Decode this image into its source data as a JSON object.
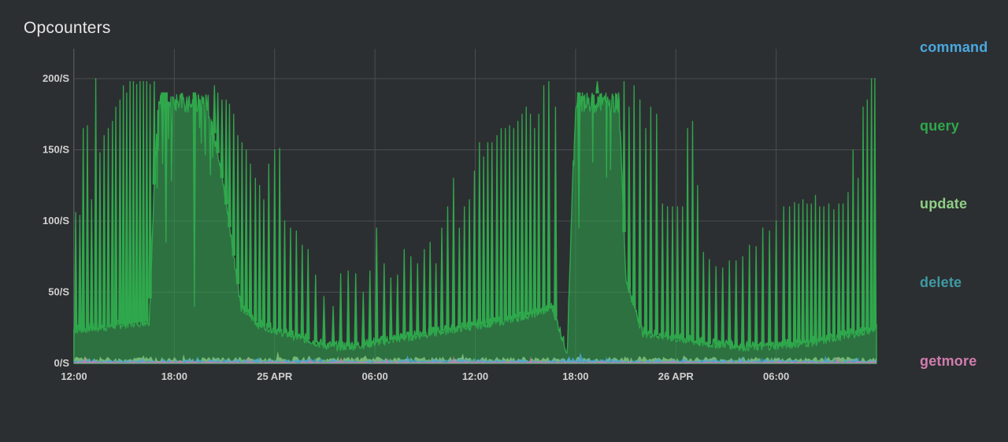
{
  "panel": {
    "title": "Opcounters"
  },
  "legend": [
    {
      "label": "command",
      "color": "#4aa8e0"
    },
    {
      "label": "query",
      "color": "#2fa84c"
    },
    {
      "label": "update",
      "color": "#8fcf86"
    },
    {
      "label": "delete",
      "color": "#3f9aa5"
    },
    {
      "label": "getmore",
      "color": "#d27cb0"
    }
  ],
  "chart_data": {
    "type": "area",
    "title": "Opcounters",
    "xlabel": "",
    "ylabel": "",
    "ylim": [
      0,
      200
    ],
    "y_unit": "/S",
    "y_ticks": [
      {
        "value": 0,
        "label": "0/S"
      },
      {
        "value": 50,
        "label": "50/S"
      },
      {
        "value": 100,
        "label": "100/S"
      },
      {
        "value": 150,
        "label": "150/S"
      },
      {
        "value": 200,
        "label": "200/S"
      }
    ],
    "x_range_hours": [
      0,
      48
    ],
    "x_ticks": [
      {
        "hour": 0,
        "label": "12:00"
      },
      {
        "hour": 6,
        "label": "18:00"
      },
      {
        "hour": 12,
        "label": "25 APR"
      },
      {
        "hour": 18,
        "label": "06:00"
      },
      {
        "hour": 24,
        "label": "12:00"
      },
      {
        "hour": 30,
        "label": "18:00"
      },
      {
        "hour": 36,
        "label": "26 APR"
      },
      {
        "hour": 42,
        "label": "06:00"
      }
    ],
    "grid": true,
    "legend_position": "right",
    "series": [
      {
        "name": "query",
        "color": "#2fa84c",
        "baseline": {
          "x": [
            0,
            2,
            3,
            4.5,
            5,
            7,
            7.6,
            8,
            9,
            10,
            11,
            12,
            13,
            14,
            15,
            16,
            17,
            18,
            19,
            20,
            21,
            22,
            23,
            24,
            25,
            26,
            27,
            28,
            28.6,
            29.1,
            29.5,
            30,
            31,
            32,
            32.6,
            33,
            34,
            35,
            36,
            37,
            38,
            39,
            40,
            41,
            42,
            43,
            44,
            45,
            46,
            47,
            48
          ],
          "y": [
            24,
            26,
            28,
            30,
            190,
            190,
            190,
            190,
            120,
            40,
            28,
            24,
            20,
            17,
            13,
            12,
            13,
            15,
            17,
            19,
            21,
            23,
            25,
            27,
            29,
            31,
            34,
            37,
            40,
            22,
            8,
            190,
            190,
            190,
            190,
            60,
            22,
            20,
            18,
            16,
            14,
            14,
            12,
            12,
            13,
            14,
            15,
            17,
            20,
            22,
            25
          ]
        },
        "spikes": [
          {
            "x": 0.1,
            "y": 106
          },
          {
            "x": 0.35,
            "y": 104
          },
          {
            "x": 0.55,
            "y": 165
          },
          {
            "x": 0.8,
            "y": 167
          },
          {
            "x": 1.05,
            "y": 115
          },
          {
            "x": 1.3,
            "y": 200
          },
          {
            "x": 1.55,
            "y": 148
          },
          {
            "x": 1.8,
            "y": 160
          },
          {
            "x": 2.05,
            "y": 165
          },
          {
            "x": 2.3,
            "y": 170
          },
          {
            "x": 2.5,
            "y": 180
          },
          {
            "x": 2.75,
            "y": 185
          },
          {
            "x": 2.95,
            "y": 195
          },
          {
            "x": 3.15,
            "y": 190
          },
          {
            "x": 3.35,
            "y": 198
          },
          {
            "x": 3.55,
            "y": 198
          },
          {
            "x": 3.75,
            "y": 196
          },
          {
            "x": 3.95,
            "y": 198
          },
          {
            "x": 4.15,
            "y": 198
          },
          {
            "x": 4.35,
            "y": 198
          },
          {
            "x": 4.55,
            "y": 196
          },
          {
            "x": 4.8,
            "y": 198
          },
          {
            "x": 5.3,
            "y": 140
          },
          {
            "x": 5.5,
            "y": 85
          },
          {
            "x": 7.2,
            "y": 40
          },
          {
            "x": 8.4,
            "y": 195
          },
          {
            "x": 8.6,
            "y": 190
          },
          {
            "x": 8.85,
            "y": 185
          },
          {
            "x": 9.1,
            "y": 185
          },
          {
            "x": 9.3,
            "y": 182
          },
          {
            "x": 9.55,
            "y": 175
          },
          {
            "x": 9.8,
            "y": 160
          },
          {
            "x": 10.05,
            "y": 155
          },
          {
            "x": 10.3,
            "y": 150
          },
          {
            "x": 10.55,
            "y": 140
          },
          {
            "x": 10.85,
            "y": 130
          },
          {
            "x": 11.1,
            "y": 125
          },
          {
            "x": 11.35,
            "y": 115
          },
          {
            "x": 11.65,
            "y": 140
          },
          {
            "x": 12.0,
            "y": 150
          },
          {
            "x": 12.3,
            "y": 151
          },
          {
            "x": 12.6,
            "y": 100
          },
          {
            "x": 12.95,
            "y": 95
          },
          {
            "x": 13.3,
            "y": 93
          },
          {
            "x": 13.65,
            "y": 83
          },
          {
            "x": 14.0,
            "y": 80
          },
          {
            "x": 14.45,
            "y": 62
          },
          {
            "x": 14.95,
            "y": 47
          },
          {
            "x": 15.5,
            "y": 40
          },
          {
            "x": 15.95,
            "y": 63
          },
          {
            "x": 16.4,
            "y": 65
          },
          {
            "x": 16.85,
            "y": 63
          },
          {
            "x": 17.3,
            "y": 50
          },
          {
            "x": 17.7,
            "y": 65
          },
          {
            "x": 18.1,
            "y": 95
          },
          {
            "x": 18.55,
            "y": 70
          },
          {
            "x": 18.95,
            "y": 60
          },
          {
            "x": 19.35,
            "y": 62
          },
          {
            "x": 19.75,
            "y": 80
          },
          {
            "x": 20.15,
            "y": 75
          },
          {
            "x": 20.55,
            "y": 70
          },
          {
            "x": 20.95,
            "y": 80
          },
          {
            "x": 21.3,
            "y": 85
          },
          {
            "x": 21.65,
            "y": 70
          },
          {
            "x": 22.0,
            "y": 95
          },
          {
            "x": 22.35,
            "y": 110
          },
          {
            "x": 22.7,
            "y": 130
          },
          {
            "x": 23.05,
            "y": 95
          },
          {
            "x": 23.35,
            "y": 110
          },
          {
            "x": 23.65,
            "y": 115
          },
          {
            "x": 23.95,
            "y": 135
          },
          {
            "x": 24.25,
            "y": 155
          },
          {
            "x": 24.5,
            "y": 145
          },
          {
            "x": 24.75,
            "y": 155
          },
          {
            "x": 25.0,
            "y": 155
          },
          {
            "x": 25.3,
            "y": 160
          },
          {
            "x": 25.55,
            "y": 165
          },
          {
            "x": 25.8,
            "y": 165
          },
          {
            "x": 26.05,
            "y": 167
          },
          {
            "x": 26.3,
            "y": 165
          },
          {
            "x": 26.55,
            "y": 170
          },
          {
            "x": 26.8,
            "y": 175
          },
          {
            "x": 27.05,
            "y": 180
          },
          {
            "x": 27.3,
            "y": 175
          },
          {
            "x": 27.55,
            "y": 165
          },
          {
            "x": 27.8,
            "y": 175
          },
          {
            "x": 28.1,
            "y": 195
          },
          {
            "x": 28.4,
            "y": 198
          },
          {
            "x": 28.8,
            "y": 180
          },
          {
            "x": 30.2,
            "y": 95
          },
          {
            "x": 31.3,
            "y": 198
          },
          {
            "x": 32.9,
            "y": 198
          },
          {
            "x": 33.2,
            "y": 180
          },
          {
            "x": 33.5,
            "y": 195
          },
          {
            "x": 33.85,
            "y": 185
          },
          {
            "x": 34.2,
            "y": 165
          },
          {
            "x": 34.5,
            "y": 180
          },
          {
            "x": 34.85,
            "y": 175
          },
          {
            "x": 35.2,
            "y": 112
          },
          {
            "x": 35.5,
            "y": 110
          },
          {
            "x": 35.8,
            "y": 110
          },
          {
            "x": 36.1,
            "y": 110
          },
          {
            "x": 36.4,
            "y": 110
          },
          {
            "x": 36.7,
            "y": 165
          },
          {
            "x": 37.0,
            "y": 170
          },
          {
            "x": 37.3,
            "y": 125
          },
          {
            "x": 37.65,
            "y": 78
          },
          {
            "x": 38.0,
            "y": 73
          },
          {
            "x": 38.4,
            "y": 68
          },
          {
            "x": 38.8,
            "y": 67
          },
          {
            "x": 39.2,
            "y": 72
          },
          {
            "x": 39.6,
            "y": 72
          },
          {
            "x": 40.0,
            "y": 75
          },
          {
            "x": 40.4,
            "y": 83
          },
          {
            "x": 40.8,
            "y": 82
          },
          {
            "x": 41.2,
            "y": 95
          },
          {
            "x": 41.6,
            "y": 93
          },
          {
            "x": 42.0,
            "y": 100
          },
          {
            "x": 42.45,
            "y": 110
          },
          {
            "x": 42.8,
            "y": 110
          },
          {
            "x": 43.1,
            "y": 113
          },
          {
            "x": 43.35,
            "y": 112
          },
          {
            "x": 43.6,
            "y": 115
          },
          {
            "x": 43.85,
            "y": 112
          },
          {
            "x": 44.1,
            "y": 112
          },
          {
            "x": 44.35,
            "y": 118
          },
          {
            "x": 44.6,
            "y": 110
          },
          {
            "x": 44.85,
            "y": 110
          },
          {
            "x": 45.15,
            "y": 112
          },
          {
            "x": 45.45,
            "y": 108
          },
          {
            "x": 45.75,
            "y": 112
          },
          {
            "x": 46.0,
            "y": 112
          },
          {
            "x": 46.3,
            "y": 120
          },
          {
            "x": 46.6,
            "y": 150
          },
          {
            "x": 46.9,
            "y": 130
          },
          {
            "x": 47.2,
            "y": 180
          },
          {
            "x": 47.45,
            "y": 185
          },
          {
            "x": 47.7,
            "y": 200
          },
          {
            "x": 47.9,
            "y": 200
          }
        ]
      },
      {
        "name": "update",
        "color": "#8fcf86",
        "level": 3
      },
      {
        "name": "command",
        "color": "#4aa8e0",
        "level": 2,
        "bumps": [
          {
            "x": 29.6,
            "y": 6
          },
          {
            "x": 30.3,
            "y": 9
          }
        ]
      },
      {
        "name": "delete",
        "color": "#3f9aa5",
        "level": 1
      },
      {
        "name": "getmore",
        "color": "#d27cb0",
        "level": 1
      }
    ]
  }
}
